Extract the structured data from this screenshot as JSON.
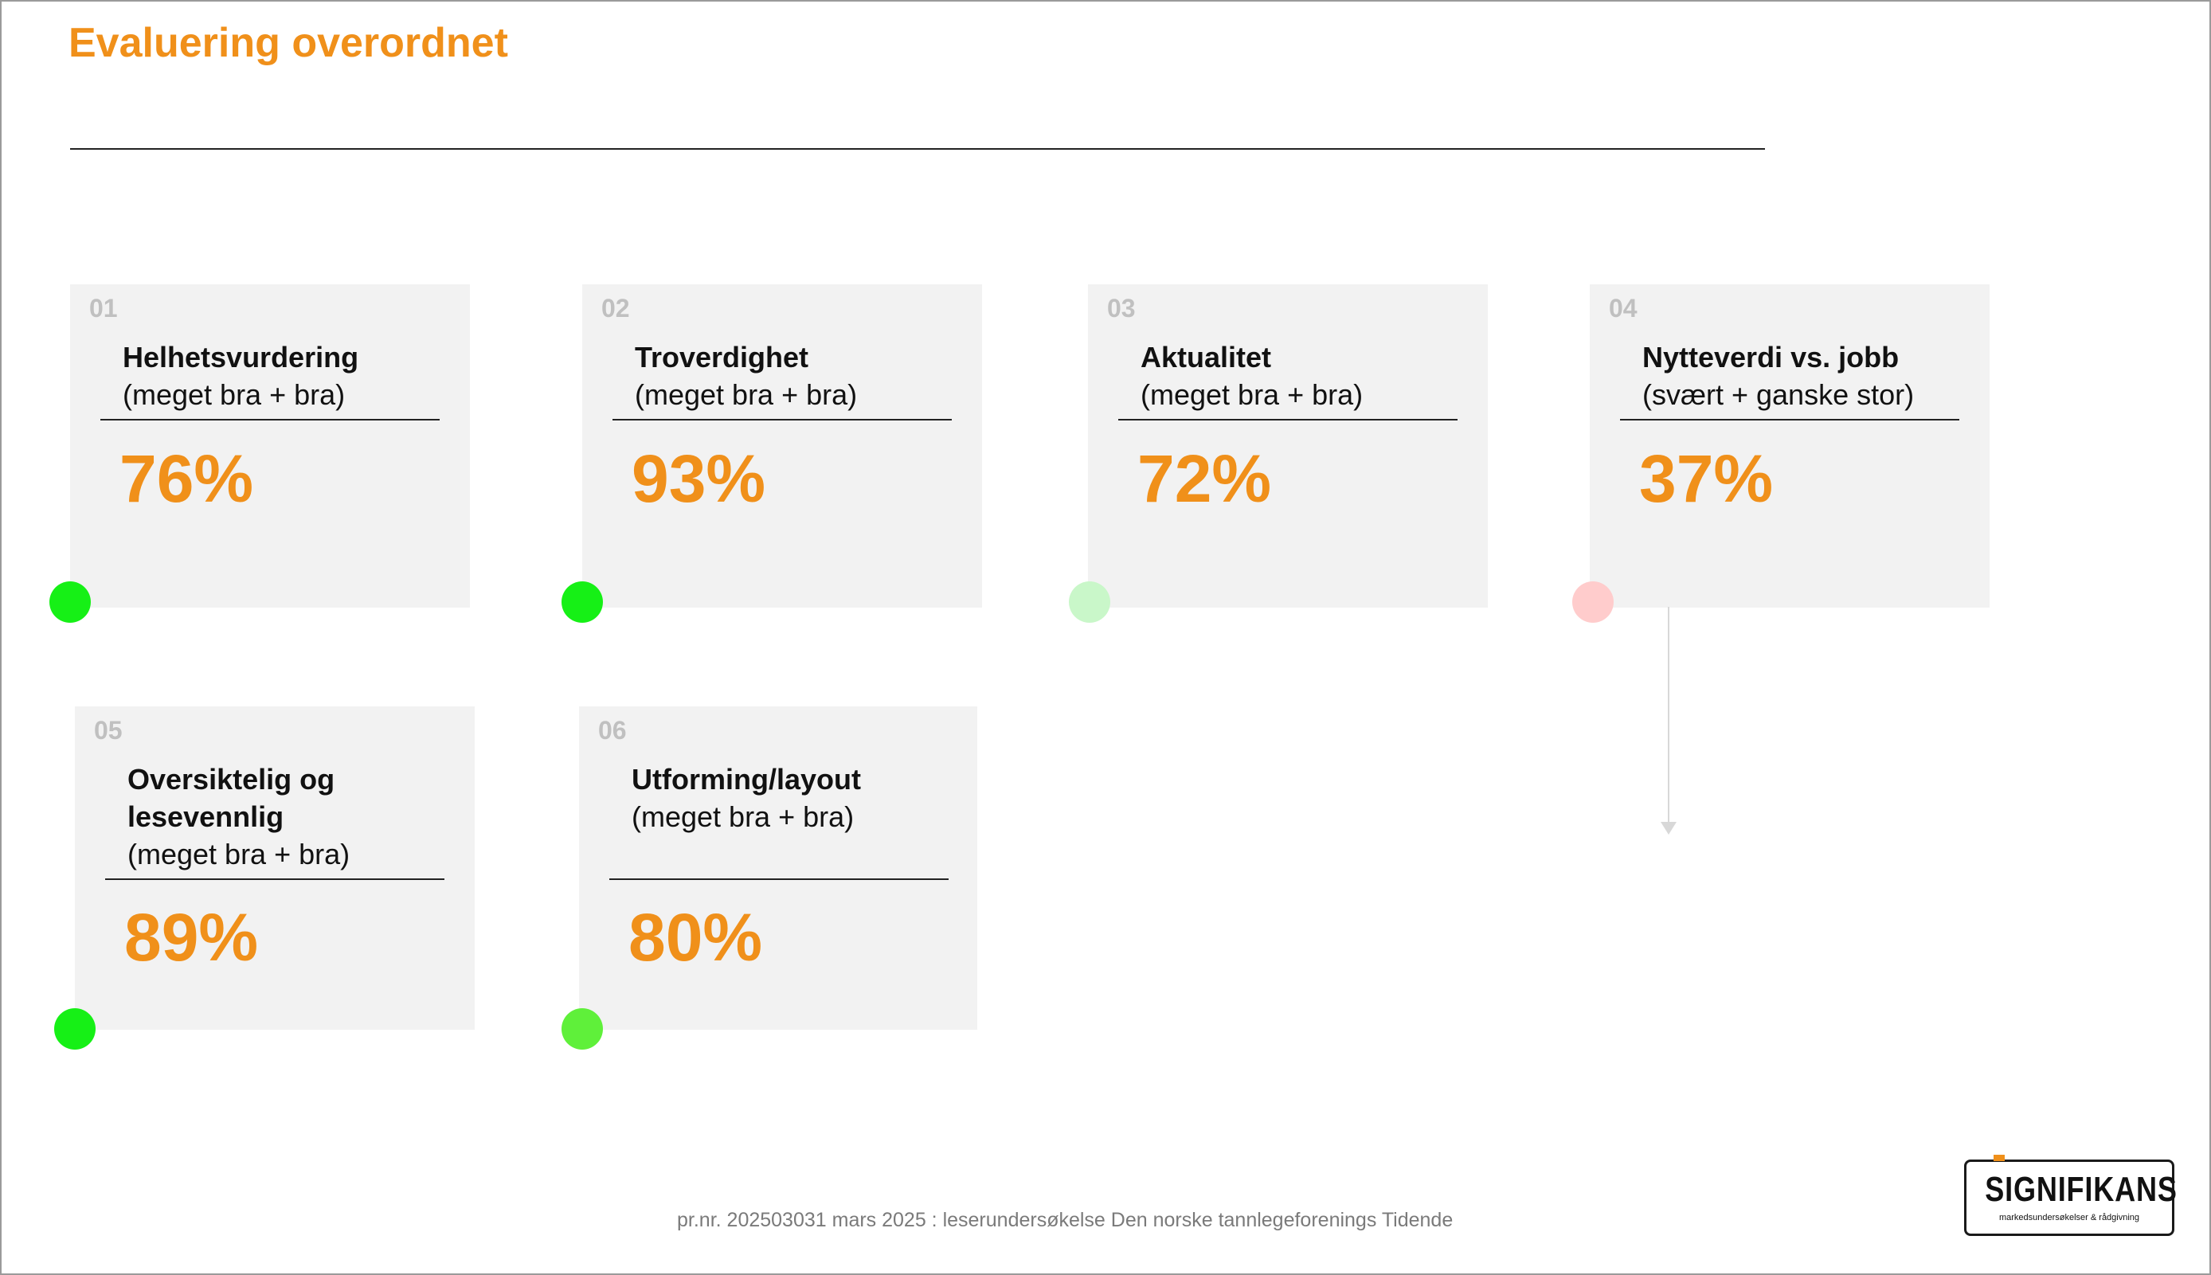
{
  "title": "Evaluering overordnet",
  "cards": [
    {
      "number": "01",
      "label_bold": "Helhetsvurdering",
      "label_sub": "(meget bra + bra)",
      "value": "76%",
      "status_color": "#16f016"
    },
    {
      "number": "02",
      "label_bold": "Troverdighet",
      "label_sub": "(meget bra + bra)",
      "value": "93%",
      "status_color": "#16f016"
    },
    {
      "number": "03",
      "label_bold": "Aktualitet",
      "label_sub": "(meget bra + bra)",
      "value": "72%",
      "status_color": "#c9f7c9"
    },
    {
      "number": "04",
      "label_bold": "Nytteverdi vs. jobb",
      "label_sub": "(svært + ganske stor)",
      "value": "37%",
      "status_color": "#ffcccc"
    },
    {
      "number": "05",
      "label_bold_line1": "Oversiktelig og",
      "label_bold_line2": "lesevennlig",
      "label_sub": "(meget bra + bra)",
      "value": "89%",
      "status_color": "#16f016"
    },
    {
      "number": "06",
      "label_bold": "Utforming/layout",
      "label_sub": "(meget bra + bra)",
      "value": "80%",
      "status_color": "#5ff03a"
    }
  ],
  "footer": "pr.nr. 202503031 mars 2025 : leserundersøkelse Den norske tannlegeforenings Tidende",
  "logo": {
    "name": "SIGNIFIKANS",
    "tagline": "markedsundersøkelser & rådgivning"
  },
  "colors": {
    "accent": "#f0901a",
    "card_bg": "#f2f2f2"
  }
}
